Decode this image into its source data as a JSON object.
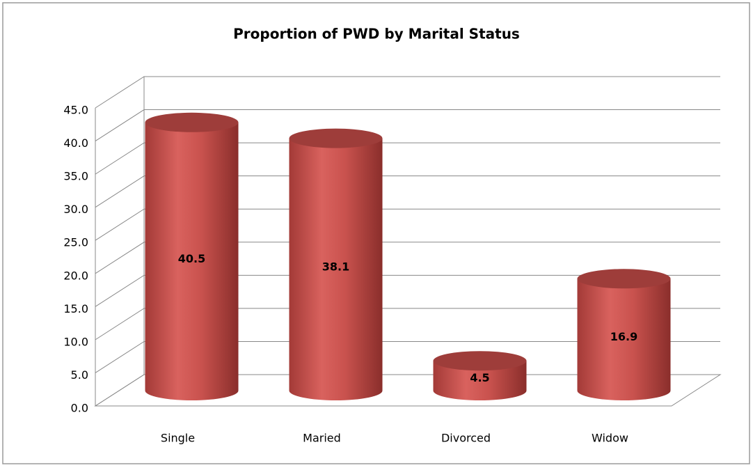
{
  "chart_data": {
    "type": "bar3d",
    "title": "Proportion of PWD by Marital Status",
    "categories": [
      "Single",
      "Maried",
      "Divorced",
      "Widow"
    ],
    "values": [
      40.5,
      38.1,
      4.5,
      16.9
    ],
    "color": "#c0504d",
    "ylim": [
      0,
      45
    ],
    "yticks": [
      {
        "value": 0,
        "label": "0.0"
      },
      {
        "value": 5,
        "label": "5.0"
      },
      {
        "value": 10,
        "label": "10.0"
      },
      {
        "value": 15,
        "label": "15.0"
      },
      {
        "value": 20,
        "label": "20.0"
      },
      {
        "value": 25,
        "label": "25.0"
      },
      {
        "value": 30,
        "label": "30.0"
      },
      {
        "value": 35,
        "label": "35.0"
      },
      {
        "value": 40,
        "label": "40.0"
      },
      {
        "value": 45,
        "label": "45.0"
      }
    ],
    "grid": true
  }
}
